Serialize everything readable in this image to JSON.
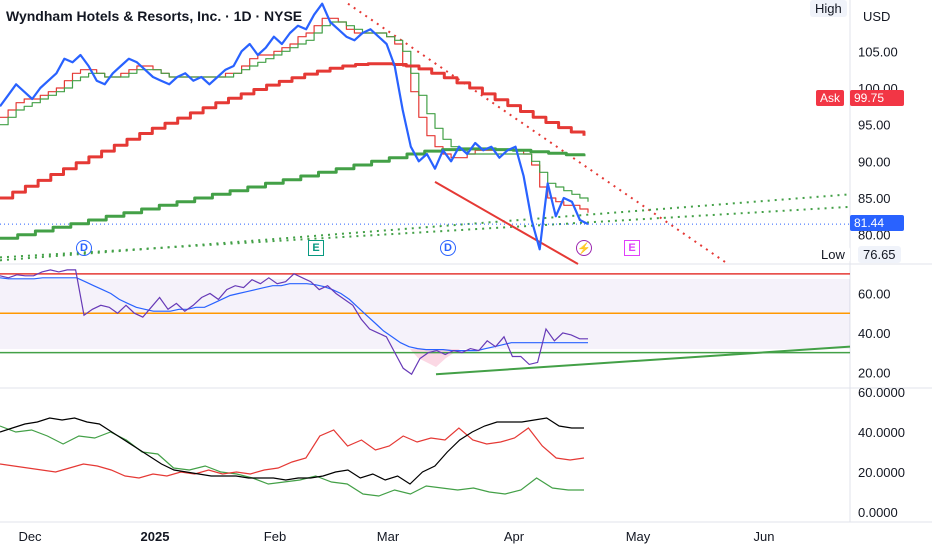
{
  "header": {
    "title": "Wyndham Hotels & Resorts, Inc. · 1D · NYSE",
    "high_label": "High",
    "currency": "USD"
  },
  "price_pane": {
    "ask_label": "Ask",
    "ask_value": "99.75",
    "last_price": "81.44",
    "low_label": "Low",
    "low_value": "76.65",
    "y_ticks": [
      "105.00",
      "100.00",
      "95.00",
      "90.00",
      "85.00",
      "80.00"
    ]
  },
  "rsi_pane": {
    "y_ticks": [
      "60.00",
      "40.00",
      "20.00"
    ]
  },
  "dmi_pane": {
    "y_ticks": [
      "60.0000",
      "40.0000",
      "20.0000",
      "0.0000"
    ]
  },
  "x_axis": {
    "labels": [
      "Dec",
      "2025",
      "Feb",
      "Mar",
      "Apr",
      "May",
      "Jun"
    ]
  },
  "events": [
    {
      "kind": "D",
      "color": "#2962ff"
    },
    {
      "kind": "E",
      "color": "#089981"
    },
    {
      "kind": "D",
      "color": "#2962ff"
    },
    {
      "kind": "⚡",
      "color": "#9c27b0"
    },
    {
      "kind": "E",
      "color": "#e040fb"
    }
  ],
  "colors": {
    "price": "#2962ff",
    "sma_red": "#e53935",
    "sma_green": "#43a047",
    "rsi": "#673ab7",
    "rsi_ma": "#2962ff",
    "rsi_upper": "#e53935",
    "rsi_mid": "#ff9800",
    "rsi_lower": "#43a047",
    "adx": "#000000",
    "plus_di": "#e53935",
    "minus_di": "#43a047"
  },
  "chart_data": [
    {
      "type": "line",
      "name": "price",
      "x_labels": [
        "Dec",
        "2025",
        "Feb",
        "Mar",
        "Apr",
        "May",
        "Jun"
      ],
      "ylim": [
        76,
        112
      ],
      "series": [
        {
          "values": [
            97.5,
            99,
            100.5,
            99.5,
            98.5,
            100,
            101,
            102,
            104,
            103.5,
            104.5,
            103,
            101,
            100.5,
            102,
            103,
            104,
            103.5,
            102.5,
            101.5,
            101,
            100.5,
            101.5,
            102,
            101,
            101.5,
            100.5,
            101.5,
            102.5,
            103,
            105,
            106,
            104.5,
            105.5,
            107,
            106,
            107.5,
            108.5,
            108,
            110,
            111.5,
            109,
            108,
            107,
            106.5,
            107.5,
            108,
            107,
            106,
            103,
            97,
            92,
            90,
            91,
            89,
            91.5,
            90,
            92,
            91,
            92.5,
            91.5,
            92,
            90.5,
            91.5,
            92,
            88,
            82,
            78,
            87,
            82.5,
            85,
            84.5,
            82,
            81.44
          ]
        },
        {
          "values": [
            96,
            97,
            98,
            98.5,
            98.5,
            99,
            99.5,
            100,
            101,
            102,
            102.5,
            102.5,
            102,
            101.5,
            101.5,
            102,
            102.5,
            103,
            103,
            102.5,
            102,
            101.5,
            101.5,
            101.5,
            101.5,
            101.5,
            101.5,
            101.5,
            102,
            102,
            103,
            104,
            104.5,
            104.5,
            105,
            105.5,
            106,
            107,
            107.5,
            108.5,
            109.5,
            109.5,
            109,
            108,
            107.5,
            107.5,
            107.5,
            107.5,
            107,
            106,
            103,
            99.5,
            96,
            93.5,
            92,
            91,
            90.5,
            90.5,
            91,
            91.5,
            91.5,
            91.5,
            91.5,
            91.5,
            91.5,
            91,
            89.5,
            86.5,
            85,
            84.5,
            84,
            84,
            83.5,
            83
          ]
        },
        {
          "values": [
            95,
            96,
            97,
            97.5,
            98,
            98.5,
            99,
            99.5,
            100,
            101,
            101.5,
            102,
            102,
            101.5,
            101.5,
            101.5,
            102,
            102.5,
            102.5,
            102.5,
            102,
            101.5,
            101.5,
            101.5,
            101.5,
            101.5,
            101.5,
            101.5,
            101.5,
            102,
            102.5,
            103,
            103.5,
            104,
            104.5,
            105,
            105.5,
            106,
            106.5,
            107.5,
            108.5,
            109,
            109,
            108.5,
            108,
            107.5,
            107.5,
            107.5,
            107,
            106.5,
            105,
            102,
            99,
            96.5,
            94.5,
            93,
            92,
            91.5,
            91,
            91,
            91,
            91,
            91,
            91,
            91,
            91,
            90,
            88.5,
            87,
            86.5,
            86,
            85.5,
            85,
            84.5
          ]
        },
        {
          "values": [
            85,
            85.8,
            86.6,
            87.4,
            88.2,
            89,
            89.8,
            90.6,
            91.4,
            92.2,
            93,
            93.8,
            94.5,
            95.2,
            95.9,
            96.6,
            97.3,
            98,
            98.6,
            99.2,
            99.8,
            100.4,
            100.9,
            101.4,
            101.9,
            102.3,
            102.7,
            103,
            103.2,
            103.3,
            103.3,
            103.2,
            103,
            102.6,
            102,
            101.4,
            100.7,
            100,
            99.2,
            98.4,
            97.6,
            96.8,
            96,
            95.3,
            94.6,
            94,
            93.5
          ]
        },
        {
          "values": [
            79.5,
            80,
            80.5,
            81,
            81.5,
            82,
            82.5,
            83,
            83.5,
            84,
            84.5,
            85,
            85.5,
            86,
            86.5,
            87,
            87.5,
            88,
            88.5,
            89,
            89.5,
            90,
            90.5,
            91,
            91.4,
            91.6,
            91.7,
            91.7,
            91.6,
            91.5,
            91.3,
            91.1,
            90.9,
            90.7
          ]
        }
      ]
    },
    {
      "type": "line",
      "name": "RSI",
      "ylim": [
        12,
        75
      ],
      "series": [
        {
          "values": [
            69,
            68,
            69.5,
            69,
            69,
            71,
            72,
            71,
            72,
            72,
            49,
            52,
            54,
            53,
            50,
            54,
            50,
            48,
            53,
            58,
            52,
            55,
            51,
            54,
            58,
            60,
            57,
            62,
            64,
            63,
            67,
            65,
            68,
            65,
            66,
            70,
            68,
            66,
            62,
            64,
            60,
            57,
            54,
            47,
            42,
            40,
            38,
            30,
            22,
            19,
            27,
            30,
            31,
            29,
            31,
            30,
            32,
            31,
            36,
            33,
            38,
            28,
            28,
            24,
            25,
            42,
            36,
            40,
            39,
            37,
            37
          ]
        },
        {
          "values": [
            68,
            67.5,
            67.5,
            67.5,
            67.5,
            68,
            68,
            68,
            68,
            68,
            66,
            64,
            62,
            60,
            57,
            55,
            53,
            52,
            51,
            51,
            51,
            52,
            52,
            53,
            53,
            55,
            57,
            59,
            60,
            61,
            62,
            63,
            64,
            64,
            65,
            65,
            65,
            64.5,
            63.5,
            62,
            60,
            57,
            53,
            49,
            45,
            41,
            38,
            35,
            33,
            32,
            31.5,
            31.5,
            31.5,
            31,
            31,
            31,
            31,
            32,
            33,
            34,
            35,
            35,
            35,
            35,
            35,
            35,
            35,
            35,
            35,
            35
          ]
        }
      ]
    },
    {
      "type": "line",
      "name": "DMI",
      "ylim": [
        -5,
        62
      ],
      "series": [
        {
          "values": [
            40,
            42,
            44,
            45,
            47,
            46,
            47,
            45,
            44,
            40,
            36,
            32,
            28,
            24,
            21,
            20,
            19,
            18,
            18,
            18,
            17,
            17,
            17,
            16,
            17,
            17,
            18,
            20,
            21,
            17,
            19,
            16,
            18,
            14,
            20,
            23,
            30,
            36,
            40,
            43,
            45,
            45,
            45,
            46,
            47,
            43,
            42,
            42
          ]
        },
        {
          "values": [
            24,
            23,
            22,
            21,
            20,
            22,
            24,
            23,
            21,
            18,
            17,
            19,
            18,
            20,
            19,
            21,
            19,
            20,
            19,
            21,
            22,
            25,
            27,
            38,
            41,
            33,
            36,
            31,
            33,
            38,
            35,
            37,
            36,
            42,
            36,
            34,
            35,
            37,
            42,
            33,
            27,
            26,
            27
          ]
        },
        {
          "values": [
            43,
            40,
            41,
            38,
            34,
            38,
            37,
            40,
            36,
            30,
            29,
            22,
            21,
            23,
            20,
            19,
            17,
            14,
            15,
            16,
            18,
            15,
            14,
            9,
            8,
            11,
            9,
            13,
            12,
            11,
            12,
            10,
            9,
            11,
            17,
            12,
            11,
            11
          ]
        }
      ]
    }
  ]
}
